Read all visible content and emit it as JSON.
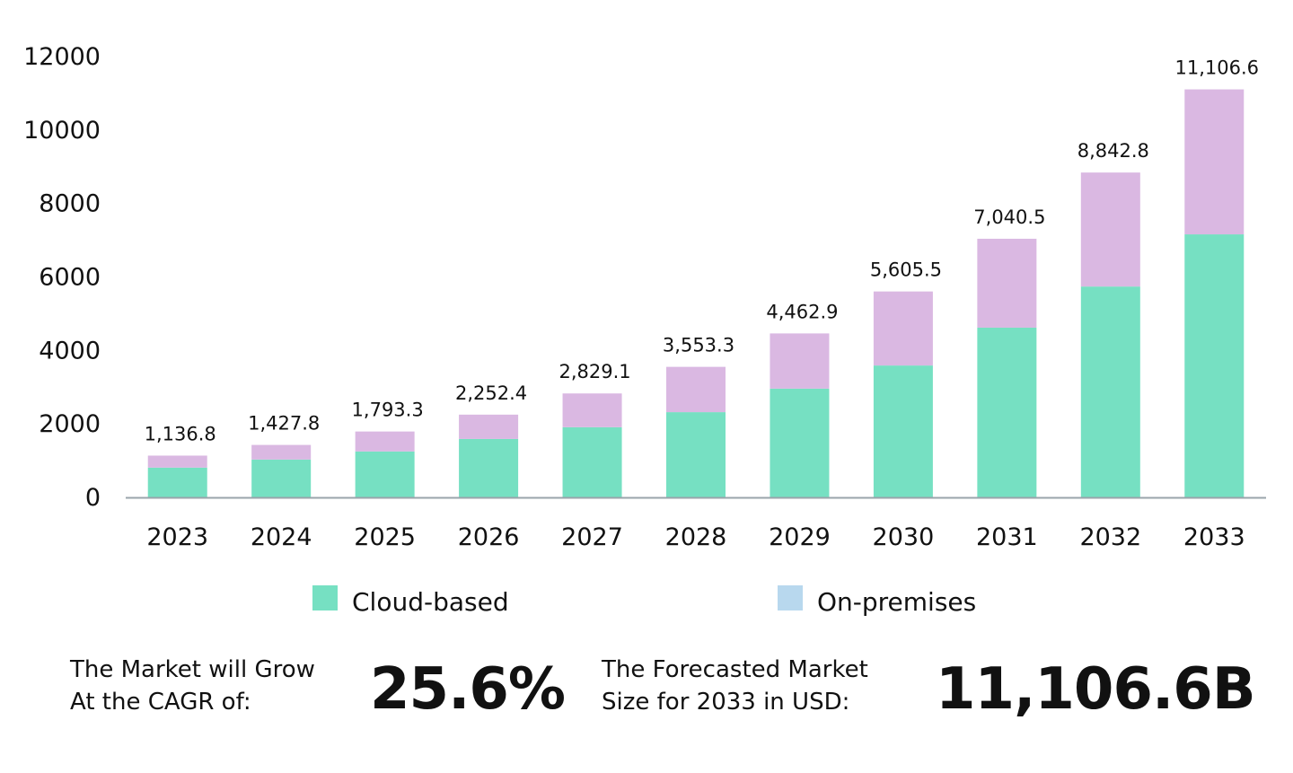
{
  "chart_data": {
    "type": "bar",
    "stacked": true,
    "categories": [
      "2023",
      "2024",
      "2025",
      "2026",
      "2027",
      "2028",
      "2029",
      "2030",
      "2031",
      "2032",
      "2033"
    ],
    "totals": [
      1136.8,
      1427.8,
      1793.3,
      2252.4,
      2829.1,
      3553.3,
      4462.9,
      5605.5,
      7040.5,
      8842.8,
      11106.6
    ],
    "total_labels": [
      "1,136.8",
      "1,427.8",
      "1,793.3",
      "2,252.4",
      "2,829.1",
      "3,553.3",
      "4,462.9",
      "5,605.5",
      "7,040.5",
      "8,842.8",
      "11,106.6"
    ],
    "series": [
      {
        "name": "Cloud-based",
        "color": "#76E0C2",
        "values": [
          810,
          1030,
          1250,
          1590,
          1910,
          2320,
          2960,
          3590,
          4620,
          5740,
          7160
        ]
      },
      {
        "name": "On-premises",
        "color": "#DAB8E2",
        "legend_color": "#B8D8EE",
        "values": [
          326.8,
          397.8,
          543.3,
          662.4,
          919.1,
          1233.3,
          1502.9,
          2015.5,
          2420.5,
          3102.8,
          3946.6
        ]
      }
    ],
    "ylim": [
      0,
      12000
    ],
    "yticks": [
      0,
      2000,
      4000,
      6000,
      8000,
      10000,
      12000
    ],
    "grid": false,
    "legend_placement": "bottom",
    "xlabel": "",
    "ylabel": ""
  },
  "footer": {
    "cagr_label_line1": "The Market will Grow",
    "cagr_label_line2": "At the CAGR of:",
    "cagr_value": "25.6%",
    "size_label_line1": "The Forecasted Market",
    "size_label_line2": "Size for 2033 in USD:",
    "size_value": "11,106.6B"
  }
}
